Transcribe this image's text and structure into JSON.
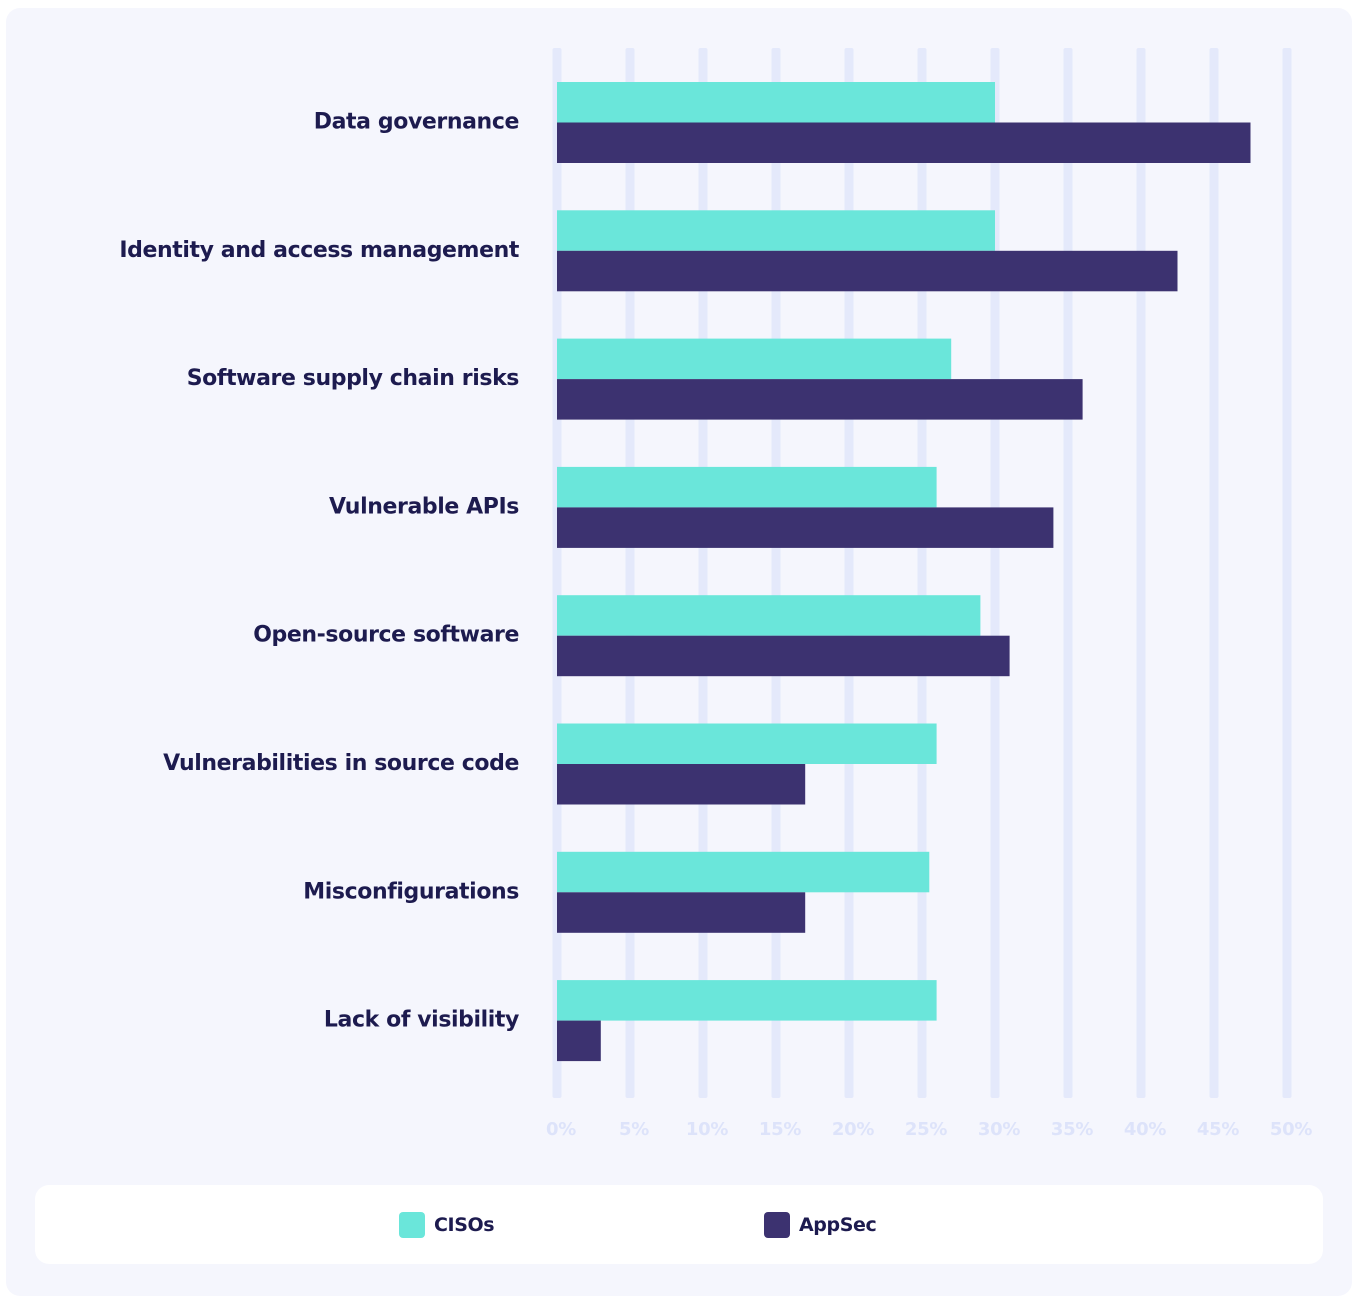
{
  "colors": {
    "cisos": "#6ae6da",
    "appsec": "#3c3270",
    "gridline": "#e4e9fb",
    "label": "#1d1b4f",
    "tick": "#dde3fa"
  },
  "legend": {
    "cisos_label": "CISOs",
    "appsec_label": "AppSec"
  },
  "chart_data": {
    "type": "bar",
    "orientation": "horizontal",
    "categories": [
      "Data governance",
      "Identity and access  management",
      "Software supply chain risks",
      "Vulnerable APIs",
      "Open-source software",
      "Vulnerabilities in source code",
      "Misconfigurations",
      "Lack of visibility"
    ],
    "series": [
      {
        "name": "CISOs",
        "values": [
          30,
          30,
          27,
          26,
          29,
          26,
          25.5,
          26
        ]
      },
      {
        "name": "AppSec",
        "values": [
          47.5,
          42.5,
          36,
          34,
          31,
          17,
          17,
          3
        ]
      }
    ],
    "xlim": [
      0,
      50
    ],
    "xticks": [
      0,
      5,
      10,
      15,
      20,
      25,
      30,
      35,
      40,
      45,
      50
    ],
    "tick_labels": [
      "0%",
      "5%",
      "10%",
      "15%",
      "20%",
      "25%",
      "30%",
      "35%",
      "40%",
      "45%",
      "50%"
    ],
    "grid": true,
    "legend_position": "bottom"
  }
}
